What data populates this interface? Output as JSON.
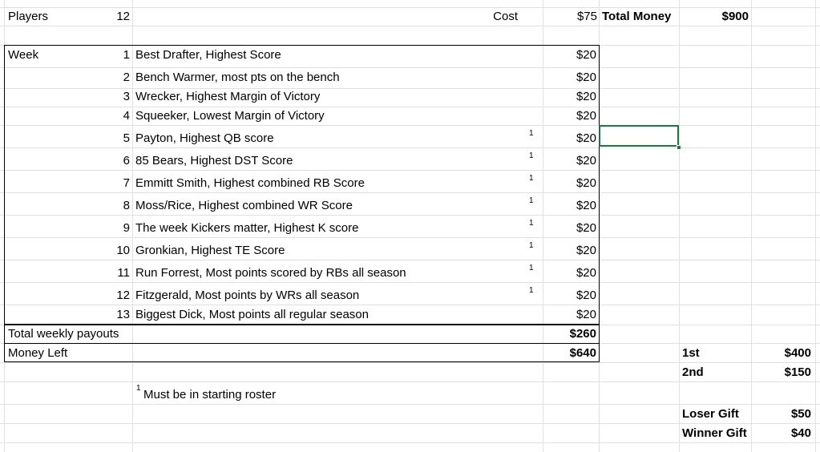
{
  "header": {
    "players_label": "Players",
    "players_value": "12",
    "cost_label": "Cost",
    "cost_value": "$75",
    "total_money_label": "Total Money",
    "total_money_value": "$900"
  },
  "week_label": "Week",
  "weeks": [
    {
      "num": "1",
      "desc": "Best Drafter, Highest Score",
      "footnote": "",
      "amount": "$20"
    },
    {
      "num": "2",
      "desc": "Bench Warmer, most pts on the bench",
      "footnote": "",
      "amount": "$20"
    },
    {
      "num": "3",
      "desc": "Wrecker, Highest Margin of Victory",
      "footnote": "",
      "amount": "$20"
    },
    {
      "num": "4",
      "desc": "Squeeker, Lowest Margin of Victory",
      "footnote": "",
      "amount": "$20"
    },
    {
      "num": "5",
      "desc": "Payton, Highest QB score",
      "footnote": "1",
      "amount": "$20"
    },
    {
      "num": "6",
      "desc": "85 Bears, Highest DST Score",
      "footnote": "1",
      "amount": "$20"
    },
    {
      "num": "7",
      "desc": "Emmitt Smith, Highest combined RB Score",
      "footnote": "1",
      "amount": "$20"
    },
    {
      "num": "8",
      "desc": "Moss/Rice, Highest combined WR Score",
      "footnote": "1",
      "amount": "$20"
    },
    {
      "num": "9",
      "desc": "The week Kickers matter, Highest K score",
      "footnote": "1",
      "amount": "$20"
    },
    {
      "num": "10",
      "desc": "Gronkian, Highest TE Score",
      "footnote": "1",
      "amount": "$20"
    },
    {
      "num": "11",
      "desc": "Run Forrest, Most points scored by RBs all season",
      "footnote": "1",
      "amount": "$20"
    },
    {
      "num": "12",
      "desc": "Fitzgerald, Most points by WRs all season",
      "footnote": "1",
      "amount": "$20"
    },
    {
      "num": "13",
      "desc": "Biggest Dick, Most points all regular season",
      "footnote": "",
      "amount": "$20"
    }
  ],
  "totals": {
    "weekly_payouts_label": "Total weekly payouts",
    "weekly_payouts_value": "$260",
    "money_left_label": "Money Left",
    "money_left_value": "$640"
  },
  "prizes": [
    {
      "label": "1st",
      "value": "$400"
    },
    {
      "label": "2nd",
      "value": "$150"
    },
    {
      "label": "Loser Gift",
      "value": "$50"
    },
    {
      "label": "Winner Gift",
      "value": "$40"
    }
  ],
  "footnote": {
    "marker": "1",
    "text": "Must be in starting roster"
  },
  "colors": {
    "gridline": "#e0e0e0",
    "selection": "#217346",
    "text": "#000000"
  }
}
